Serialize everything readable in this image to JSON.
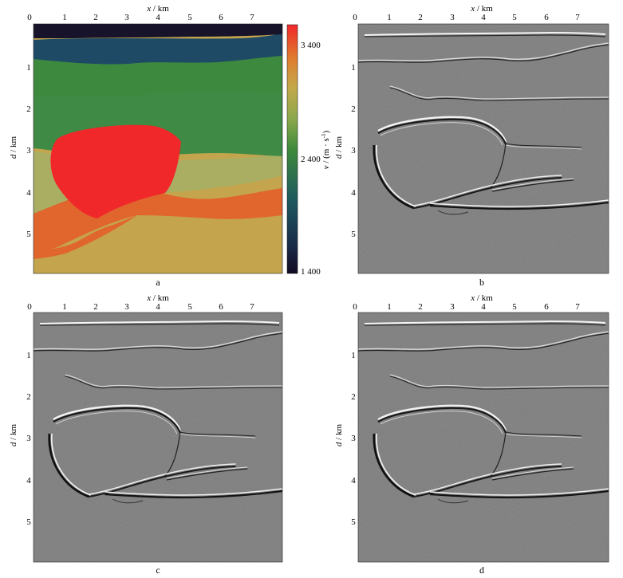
{
  "figure": {
    "panels": [
      {
        "label": "a",
        "kind": "velocity-model"
      },
      {
        "label": "b",
        "kind": "migrated-image"
      },
      {
        "label": "c",
        "kind": "migrated-image"
      },
      {
        "label": "d",
        "kind": "migrated-image"
      }
    ],
    "x_axis": {
      "var": "x",
      "unit": "km",
      "ticks": [
        "0",
        "1",
        "2",
        "3",
        "4",
        "5",
        "6",
        "7"
      ]
    },
    "y_axis": {
      "var": "d",
      "unit": "km",
      "ticks": [
        "1",
        "2",
        "3",
        "4",
        "5"
      ]
    },
    "colorbar": {
      "label_var": "v",
      "label_unit": "(m · s",
      "label_sup": "-1",
      "label_close": ")",
      "ticks": [
        "3 400",
        "2 400",
        "1 400"
      ],
      "colors": {
        "low": "#1a0f2e",
        "mid_blue": "#1e4a66",
        "green": "#3e8a3c",
        "olive": "#a8b05a",
        "tan": "#c8a24a",
        "orange": "#e0662e",
        "red": "#f0282a"
      }
    }
  },
  "chart_data": {
    "type": "heatmap",
    "description_units": {
      "x": "km",
      "depth": "km",
      "velocity": "m/s"
    },
    "xlim": [
      0,
      7.9
    ],
    "ylim": [
      0,
      5.9
    ],
    "colorbar_range": [
      1400,
      3600
    ],
    "colorbar_ticks": [
      3400,
      2400,
      1400
    ]
  }
}
